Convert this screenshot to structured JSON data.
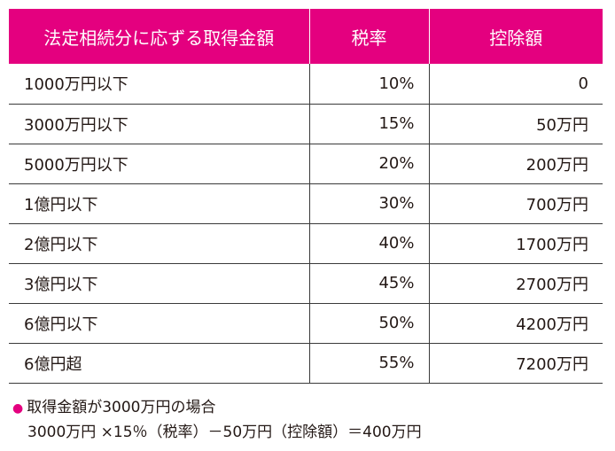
{
  "table": {
    "headers": [
      "法定相続分に応ずる取得金額",
      "税率",
      "控除額"
    ],
    "rows": [
      {
        "amount": "1000万円以下",
        "rate": "10%",
        "deduction": "0"
      },
      {
        "amount": "3000万円以下",
        "rate": "15%",
        "deduction": "50万円"
      },
      {
        "amount": "5000万円以下",
        "rate": "20%",
        "deduction": "200万円"
      },
      {
        "amount": "1億円以下",
        "rate": "30%",
        "deduction": "700万円"
      },
      {
        "amount": "2億円以下",
        "rate": "40%",
        "deduction": "1700万円"
      },
      {
        "amount": "3億円以下",
        "rate": "45%",
        "deduction": "2700万円"
      },
      {
        "amount": "6億円以下",
        "rate": "50%",
        "deduction": "4200万円"
      },
      {
        "amount": "6億円超",
        "rate": "55%",
        "deduction": "7200万円"
      }
    ]
  },
  "note": {
    "bullet": "●",
    "example_title": "取得金額が3000万円の場合",
    "formula": "3000万円 ×15％（税率）－50万円（控除額）＝400万円"
  },
  "colors": {
    "accent": "#e4007f",
    "text": "#231815",
    "rule": "#3a3a3a"
  }
}
